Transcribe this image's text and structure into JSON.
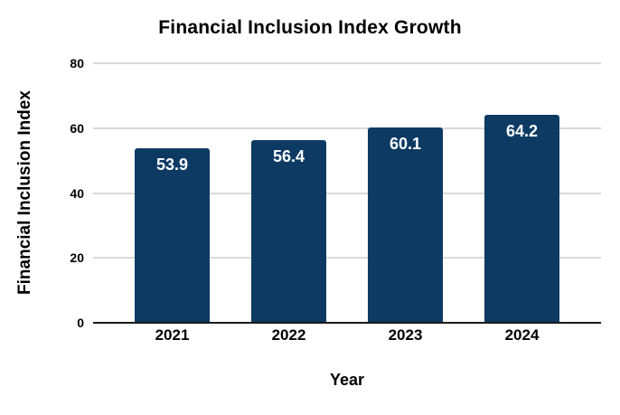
{
  "chart_data": {
    "type": "bar",
    "title": "Financial Inclusion Index Growth",
    "xlabel": "Year",
    "ylabel": "Financial Inclusion Index",
    "categories": [
      "2021",
      "2022",
      "2023",
      "2024"
    ],
    "values": [
      53.9,
      56.4,
      60.1,
      64.2
    ],
    "value_labels": [
      "53.9",
      "56.4",
      "60.1",
      "64.2"
    ],
    "ylim": [
      0,
      80
    ],
    "yticks": [
      0,
      20,
      40,
      60,
      80
    ],
    "grid": true,
    "legend_position": "none",
    "colors": {
      "bar": "#0d3a63",
      "bar_value_label": "#ffffff",
      "gridline": "#d9d9d9",
      "axis_line": "#1a1a1a",
      "text": "#000000",
      "background": "#ffffff"
    }
  }
}
